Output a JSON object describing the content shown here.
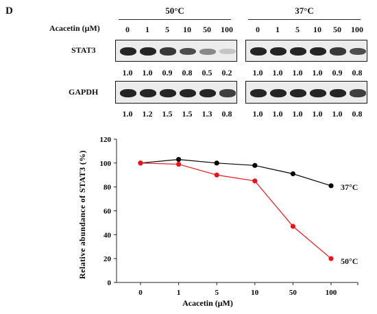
{
  "panel_label": "D",
  "blot": {
    "row_label_concentration": "Acacetin (μM)",
    "concentrations": [
      "0",
      "1",
      "5",
      "10",
      "50",
      "100"
    ],
    "groups": [
      {
        "temperature": "50°C",
        "stat3_label": "STAT3",
        "stat3_values": [
          "1.0",
          "1.0",
          "0.9",
          "0.8",
          "0.5",
          "0.2"
        ],
        "gapdh_label": "GAPDH",
        "gapdh_values": [
          "1.0",
          "1.2",
          "1.5",
          "1.5",
          "1.3",
          "0.8"
        ]
      },
      {
        "temperature": "37°C",
        "stat3_label": "",
        "stat3_values": [
          "1.0",
          "1.0",
          "1.0",
          "1.0",
          "0.9",
          "0.8"
        ],
        "gapdh_label": "",
        "gapdh_values": [
          "1.0",
          "1.0",
          "1.0",
          "1.0",
          "1.0",
          "0.8"
        ]
      }
    ]
  },
  "chart_data": {
    "type": "line",
    "categories": [
      "0",
      "1",
      "5",
      "10",
      "50",
      "100"
    ],
    "xlabel": "Acacetin (μM)",
    "ylabel": "Relative abundance of STAT3 (%)",
    "ylim": [
      0,
      120
    ],
    "yticks": [
      "0",
      "20",
      "40",
      "60",
      "80",
      "100",
      "120"
    ],
    "grid": false,
    "series": [
      {
        "name": "37°C",
        "color": "#000000",
        "values": [
          100,
          103,
          100,
          98,
          91,
          81
        ]
      },
      {
        "name": "50°C",
        "color": "#e8141c",
        "values": [
          100,
          99,
          90,
          85,
          47,
          20
        ]
      }
    ]
  }
}
